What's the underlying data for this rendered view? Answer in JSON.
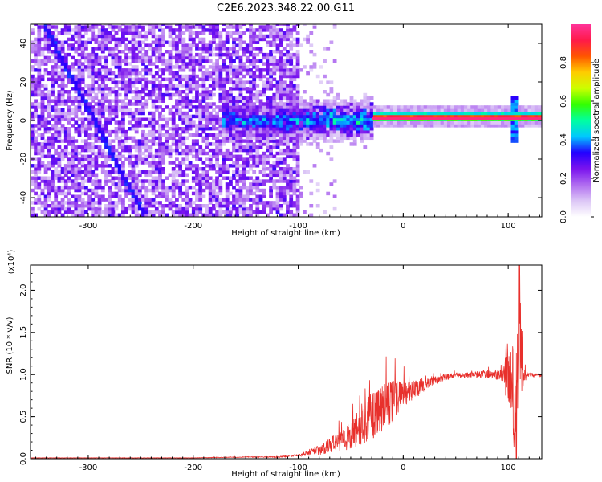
{
  "title": "C2E6.2023.348.22.00.G11",
  "chart_data": [
    {
      "type": "heatmap",
      "xlabel": "Height of straight line (km)",
      "ylabel": "Frequency (Hz)",
      "xlim": [
        -355,
        132
      ],
      "ylim": [
        -50,
        50
      ],
      "xticks": [
        -300,
        -200,
        -100,
        0,
        100
      ],
      "yticks": [
        -40,
        -20,
        0,
        20,
        40
      ],
      "colorbar": {
        "label": "Normalized spectral amplitude",
        "range": [
          0,
          1
        ],
        "ticks": [
          "0.0",
          "0.2",
          "0.4",
          "0.6",
          "0.8"
        ],
        "tick_values": [
          0,
          0.2,
          0.4,
          0.6,
          0.8
        ],
        "colors": [
          "#ffffff",
          "#dcc6f6",
          "#b06cf0",
          "#7a13ee",
          "#2200ff",
          "#00c8ff",
          "#00ffa0",
          "#33ff00",
          "#ccff00",
          "#ffcc00",
          "#ff5500",
          "#ff1a4a",
          "#ff3399"
        ]
      },
      "features": {
        "noise_band_x": [
          -355,
          -100
        ],
        "sparse_noise_x": [
          -100,
          -65
        ],
        "signal_center_freq_hz": 0,
        "signal_start_x": -175,
        "strong_signal_x": [
          -30,
          132
        ],
        "diagonal_trace": {
          "x": [
            -345,
            -258
          ],
          "y": [
            50,
            -40
          ]
        },
        "spike_x": 103,
        "spike_freq_range": [
          -12,
          12
        ]
      }
    },
    {
      "type": "line",
      "xlabel": "Height of straight line (km)",
      "ylabel": "SNR (10 * v/v)",
      "scale_note": "(x10⁴)",
      "xlim": [
        -355,
        132
      ],
      "ylim": [
        0,
        2.3
      ],
      "xticks": [
        -300,
        -200,
        -100,
        0,
        100
      ],
      "yticks": [
        "0.0",
        "0.5",
        "1.0",
        "1.5",
        "2.0"
      ],
      "ytick_values": [
        0,
        0.5,
        1.0,
        1.5,
        2.0
      ],
      "color": "#e8302c",
      "series": [
        {
          "x": [
            -355,
            -300,
            -250,
            -200,
            -150,
            -120,
            -100,
            -80,
            -70,
            -60,
            -50,
            -40,
            -30,
            -20,
            -10,
            0,
            10,
            20,
            30,
            40,
            50,
            60,
            70,
            80,
            90,
            95,
            100,
            103,
            106,
            108,
            110,
            112,
            115,
            120,
            132
          ],
          "y": [
            0.01,
            0.01,
            0.01,
            0.01,
            0.02,
            0.02,
            0.04,
            0.1,
            0.16,
            0.2,
            0.28,
            0.38,
            0.5,
            0.6,
            0.68,
            0.76,
            0.82,
            0.88,
            0.93,
            0.97,
            0.99,
            0.99,
            1.0,
            1.0,
            1.0,
            1.01,
            0.98,
            1.05,
            0.6,
            0.35,
            2.32,
            1.2,
            0.98,
            1.0,
            0.99
          ],
          "noise": [
            0.002,
            0.002,
            0.002,
            0.002,
            0.004,
            0.006,
            0.012,
            0.06,
            0.09,
            0.12,
            0.18,
            0.24,
            0.3,
            0.3,
            0.26,
            0.16,
            0.12,
            0.08,
            0.06,
            0.04,
            0.03,
            0.03,
            0.04,
            0.05,
            0.06,
            0.1,
            0.4,
            0.55,
            0.6,
            0.7,
            0.8,
            0.5,
            0.08,
            0.02,
            0.02
          ]
        }
      ]
    }
  ]
}
